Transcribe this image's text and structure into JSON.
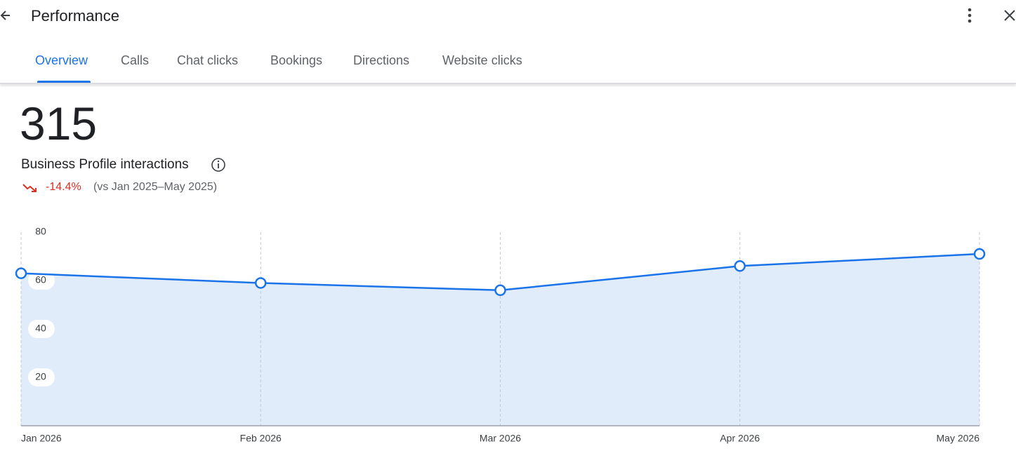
{
  "header": {
    "title": "Performance"
  },
  "tabs": [
    "Overview",
    "Calls",
    "Chat clicks",
    "Bookings",
    "Directions",
    "Website clicks"
  ],
  "summary": {
    "total": 315,
    "label": "Business Profile interactions",
    "change": "-14.4%",
    "comparison": "(vs Jan 2025–May 2025)"
  },
  "chart_data": {
    "type": "area",
    "categories": [
      "Jan 2026",
      "Feb 2026",
      "Mar 2026",
      "Apr 2026",
      "May 2026"
    ],
    "values": [
      63,
      59,
      56,
      66,
      71
    ],
    "color": "#1a73e8",
    "fill": "#e1ecfb",
    "ylim": [
      0,
      80
    ],
    "yticks": [
      20,
      40,
      60,
      80
    ],
    "grid": true
  }
}
